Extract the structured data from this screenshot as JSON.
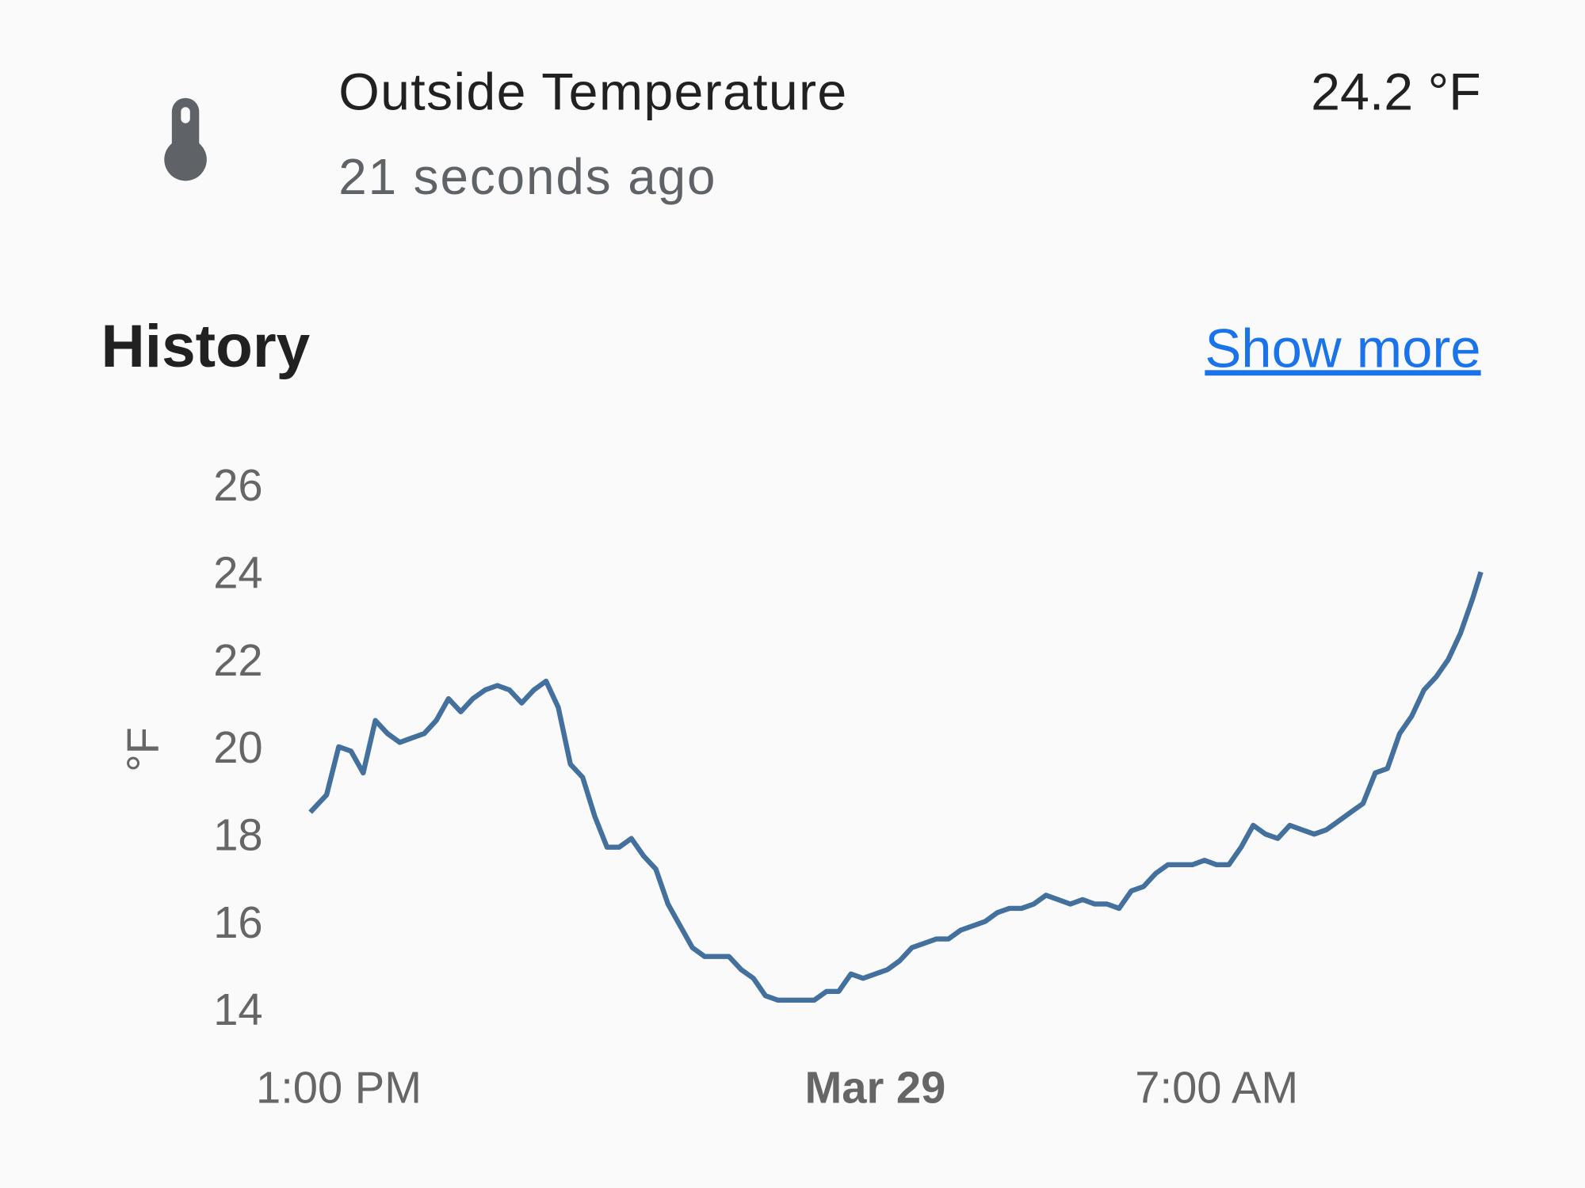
{
  "header": {
    "title": "Outside Temperature",
    "last_changed": "21 seconds ago",
    "state": "24.2 °F"
  },
  "history": {
    "title": "History",
    "link": "Show more"
  },
  "chart_data": {
    "type": "line",
    "y_label": "°F",
    "color": "#43709c",
    "x": [
      "12:25 PM",
      "12:45 PM",
      "1:00 PM",
      "1:15 PM",
      "1:30 PM",
      "1:45 PM",
      "2:00 PM",
      "2:15 PM",
      "2:30 PM",
      "2:45 PM",
      "3:00 PM",
      "3:15 PM",
      "3:30 PM",
      "3:45 PM",
      "4:00 PM",
      "4:15 PM",
      "4:30 PM",
      "4:45 PM",
      "5:00 PM",
      "5:15 PM",
      "5:30 PM",
      "5:45 PM",
      "6:00 PM",
      "6:15 PM",
      "6:30 PM",
      "6:45 PM",
      "7:00 PM",
      "7:15 PM",
      "7:30 PM",
      "7:45 PM",
      "8:00 PM",
      "8:15 PM",
      "8:30 PM",
      "8:45 PM",
      "9:00 PM",
      "9:15 PM",
      "9:30 PM",
      "9:45 PM",
      "10:00 PM",
      "10:15 PM",
      "10:30 PM",
      "10:45 PM",
      "11:00 PM",
      "11:15 PM",
      "11:30 PM",
      "11:45 PM",
      "12:00 AM",
      "12:15 AM",
      "12:30 AM",
      "12:45 AM",
      "1:00 AM",
      "1:15 AM",
      "1:30 AM",
      "1:45 AM",
      "2:00 AM",
      "2:15 AM",
      "2:30 AM",
      "2:45 AM",
      "3:00 AM",
      "3:15 AM",
      "3:30 AM",
      "3:45 AM",
      "4:00 AM",
      "4:15 AM",
      "4:30 AM",
      "4:45 AM",
      "5:00 AM",
      "5:15 AM",
      "5:30 AM",
      "5:45 AM",
      "6:00 AM",
      "6:15 AM",
      "6:30 AM",
      "6:45 AM",
      "7:00 AM",
      "7:15 AM",
      "7:30 AM",
      "7:45 AM",
      "8:00 AM",
      "8:15 AM",
      "8:30 AM",
      "8:45 AM",
      "9:00 AM",
      "9:15 AM",
      "9:30 AM",
      "9:45 AM",
      "10:00 AM",
      "10:15 AM",
      "10:30 AM",
      "10:45 AM",
      "11:00 AM",
      "11:15 AM",
      "11:30 AM",
      "11:45 AM",
      "12:00 PM",
      "12:15 PM",
      "12:25 PM"
    ],
    "values": [
      18.6,
      19.0,
      20.1,
      20.0,
      19.5,
      20.7,
      20.4,
      20.2,
      20.3,
      20.4,
      20.7,
      21.2,
      20.9,
      21.2,
      21.4,
      21.5,
      21.4,
      21.1,
      21.4,
      21.6,
      21.0,
      19.7,
      19.4,
      18.5,
      17.8,
      17.8,
      18.0,
      17.6,
      17.3,
      16.5,
      16.0,
      15.5,
      15.3,
      15.3,
      15.3,
      15.0,
      14.8,
      14.4,
      14.3,
      14.3,
      14.3,
      14.3,
      14.5,
      14.5,
      14.9,
      14.8,
      14.9,
      15.0,
      15.2,
      15.5,
      15.6,
      15.7,
      15.7,
      15.9,
      16.0,
      16.1,
      16.3,
      16.4,
      16.4,
      16.5,
      16.7,
      16.6,
      16.5,
      16.6,
      16.5,
      16.5,
      16.4,
      16.8,
      16.9,
      17.2,
      17.4,
      17.4,
      17.4,
      17.5,
      17.4,
      17.4,
      17.8,
      18.3,
      18.1,
      18.0,
      18.3,
      18.2,
      18.1,
      18.2,
      18.4,
      18.6,
      18.8,
      19.5,
      19.6,
      20.4,
      20.8,
      21.4,
      21.7,
      22.1,
      22.7,
      23.5,
      24.1
    ],
    "xlim": [
      "12:25 PM",
      "12:25 PM"
    ],
    "xticks": [
      {
        "value": "1:00 PM",
        "label": "1:00 PM"
      },
      {
        "value": "12:00 AM",
        "label": "Mar 29"
      },
      {
        "value": "7:00 AM",
        "label": "7:00 AM"
      }
    ],
    "ylim": [
      14,
      26
    ],
    "yticks": [
      14,
      16,
      18,
      20,
      22,
      24,
      26
    ],
    "grid": false
  }
}
